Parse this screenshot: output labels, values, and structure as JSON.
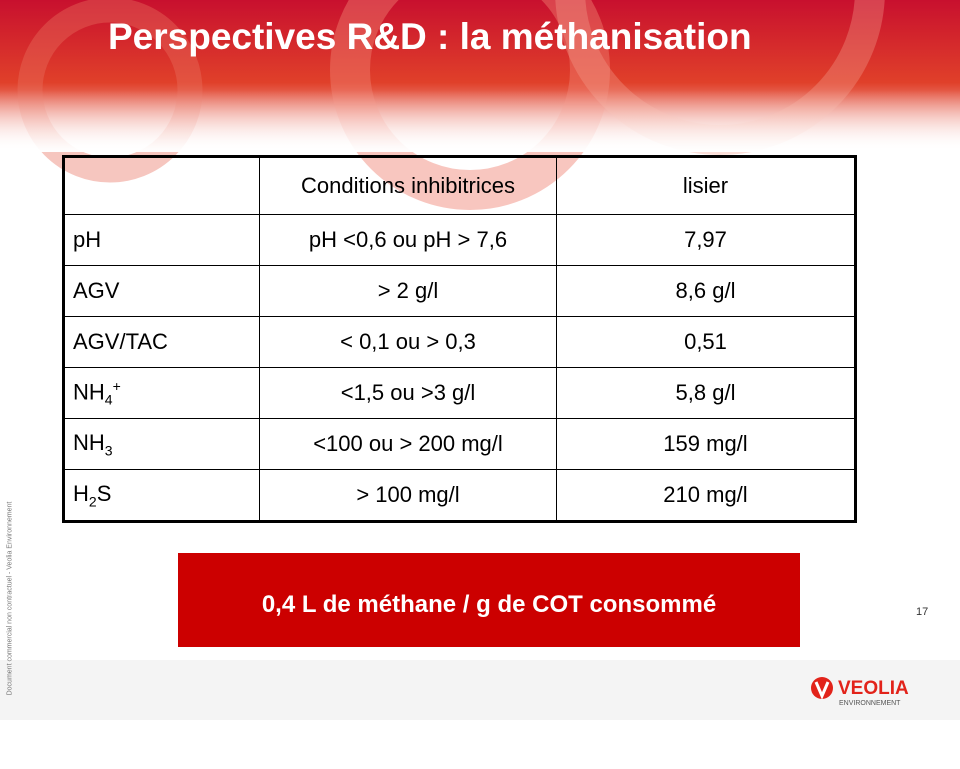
{
  "title": "Perspectives R&D : la méthanisation",
  "table": {
    "header": [
      "Conditions inhibitrices",
      "lisier"
    ],
    "rows": [
      {
        "label": [
          {
            "text": "pH"
          }
        ],
        "cells": [
          "pH <0,6 ou pH > 7,6",
          "7,97"
        ]
      },
      {
        "label": [
          {
            "text": "AGV"
          }
        ],
        "cells": [
          "> 2 g/l",
          "8,6 g/l"
        ]
      },
      {
        "label": [
          {
            "text": "AGV/TAC"
          }
        ],
        "cells": [
          "< 0,1 ou > 0,3",
          "0,51"
        ]
      },
      {
        "label": [
          {
            "text": "NH"
          },
          {
            "sub": "4"
          },
          {
            "sup": "+"
          }
        ],
        "cells": [
          "<1,5 ou >3 g/l",
          "5,8 g/l"
        ]
      },
      {
        "label": [
          {
            "text": "NH"
          },
          {
            "sub": "3"
          }
        ],
        "cells": [
          "<100 ou > 200 mg/l",
          "159 mg/l"
        ]
      },
      {
        "label": [
          {
            "text": "H"
          },
          {
            "sub": "2"
          },
          {
            "text": "S"
          }
        ],
        "cells": [
          "> 100 mg/l",
          "210 mg/l"
        ]
      }
    ]
  },
  "highlight": "0,4 L de méthane / g de COT consommé",
  "page_number": "17",
  "side_note": "Document commercial non contractuel - Veolia Environnement",
  "logo": {
    "name": "VEOLIA",
    "tagline": "ENVIRONNEMENT"
  }
}
